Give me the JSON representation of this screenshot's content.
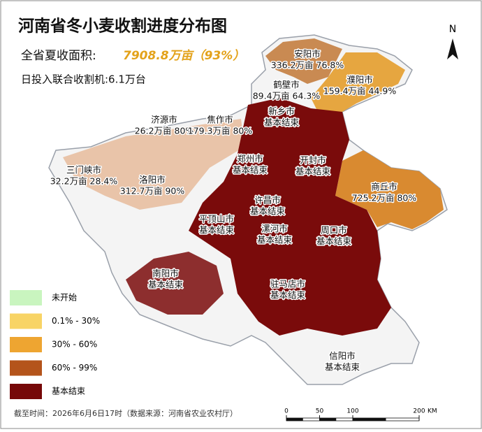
{
  "title": "河南省冬小麦收割进度分布图",
  "summary": {
    "area_label": "全省夏收面积:",
    "area_value": "7908.8万亩（93%）",
    "machines": "日投入联合收割机:6.1万台"
  },
  "cities": [
    {
      "name": "安阳市",
      "status": "336.2万亩 76.8%"
    },
    {
      "name": "鹤壁市",
      "status": "89.4万亩 64.3%"
    },
    {
      "name": "濮阳市",
      "status": "159.4万亩 44.9%"
    },
    {
      "name": "新乡市",
      "status": "基本结束"
    },
    {
      "name": "济源市",
      "status": "26.2万亩 80%"
    },
    {
      "name": "焦作市",
      "status": "179.3万亩 80%"
    },
    {
      "name": "郑州市",
      "status": "基本结束"
    },
    {
      "name": "开封市",
      "status": "基本结束"
    },
    {
      "name": "三门峡市",
      "status": "32.2万亩 28.4%"
    },
    {
      "name": "洛阳市",
      "status": "312.7万亩 90%"
    },
    {
      "name": "商丘市",
      "status": "725.2万亩 80%"
    },
    {
      "name": "许昌市",
      "status": "基本结束"
    },
    {
      "name": "平顶山市",
      "status": "基本结束"
    },
    {
      "name": "漯河市",
      "status": "基本结束"
    },
    {
      "name": "周口市",
      "status": "基本结束"
    },
    {
      "name": "南阳市",
      "status": "基本结束"
    },
    {
      "name": "驻马店市",
      "status": "基本结束"
    },
    {
      "name": "信阳市",
      "status": "基本结束"
    }
  ],
  "legend": [
    {
      "label": "未开始",
      "color": "#c9f5bf"
    },
    {
      "label": "0.1% - 30%",
      "color": "#f8d465"
    },
    {
      "label": "30% - 60%",
      "color": "#eea531"
    },
    {
      "label": "60% - 99%",
      "color": "#b4541b"
    },
    {
      "label": "基本结束",
      "color": "#760808"
    }
  ],
  "footer": "截至时间：2026年6月6日17时（数据来源：河南省农业农村厅）",
  "north": "N",
  "scale": {
    "ticks": [
      0,
      50,
      100,
      200
    ],
    "unit": "KM"
  }
}
